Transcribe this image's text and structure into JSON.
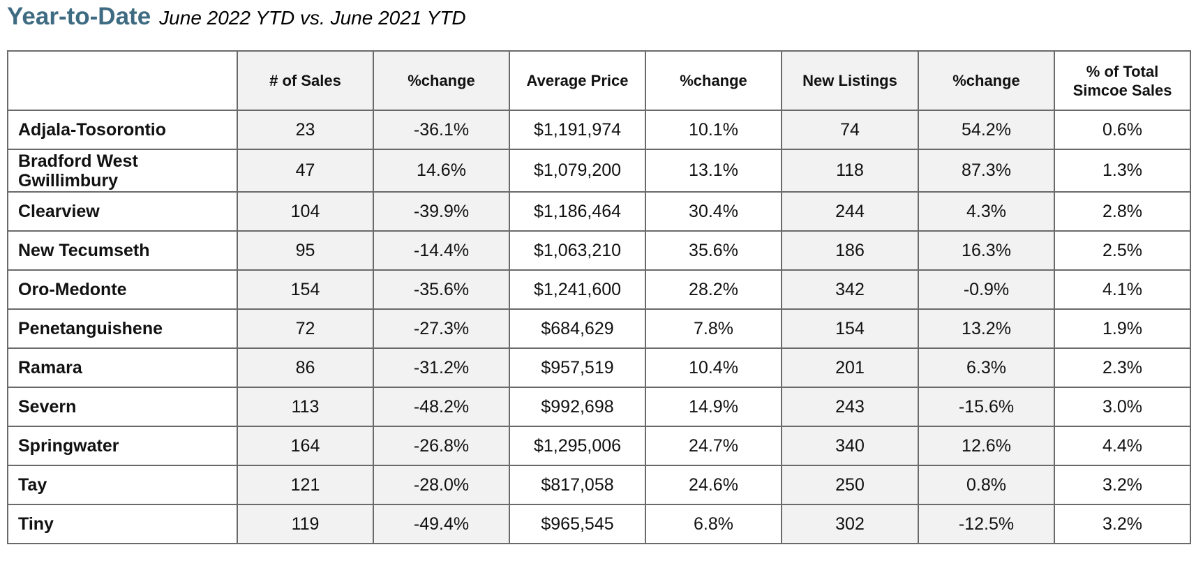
{
  "title": {
    "main": "Year-to-Date",
    "subtitle": "June 2022 YTD vs. June 2021 YTD"
  },
  "table": {
    "headers": [
      "",
      "# of Sales",
      "%change",
      "Average Price",
      "%change",
      "New Listings",
      "%change",
      "% of Total\nSimcoe Sales"
    ],
    "rows": [
      [
        "Adjala-Tosorontio",
        "23",
        "-36.1%",
        "$1,191,974",
        "10.1%",
        "74",
        "54.2%",
        "0.6%"
      ],
      [
        "Bradford West Gwillimbury",
        "47",
        "14.6%",
        "$1,079,200",
        "13.1%",
        "118",
        "87.3%",
        "1.3%"
      ],
      [
        "Clearview",
        "104",
        "-39.9%",
        "$1,186,464",
        "30.4%",
        "244",
        "4.3%",
        "2.8%"
      ],
      [
        "New Tecumseth",
        "95",
        "-14.4%",
        "$1,063,210",
        "35.6%",
        "186",
        "16.3%",
        "2.5%"
      ],
      [
        "Oro-Medonte",
        "154",
        "-35.6%",
        "$1,241,600",
        "28.2%",
        "342",
        "-0.9%",
        "4.1%"
      ],
      [
        "Penetanguishene",
        "72",
        "-27.3%",
        "$684,629",
        "7.8%",
        "154",
        "13.2%",
        "1.9%"
      ],
      [
        "Ramara",
        "86",
        "-31.2%",
        "$957,519",
        "10.4%",
        "201",
        "6.3%",
        "2.3%"
      ],
      [
        "Severn",
        "113",
        "-48.2%",
        "$992,698",
        "14.9%",
        "243",
        "-15.6%",
        "3.0%"
      ],
      [
        "Springwater",
        "164",
        "-26.8%",
        "$1,295,006",
        "24.7%",
        "340",
        "12.6%",
        "4.4%"
      ],
      [
        "Tay",
        "121",
        "-28.0%",
        "$817,058",
        "24.6%",
        "250",
        "0.8%",
        "3.2%"
      ],
      [
        "Tiny",
        "119",
        "-49.4%",
        "$965,545",
        "6.8%",
        "302",
        "-12.5%",
        "3.2%"
      ]
    ]
  }
}
